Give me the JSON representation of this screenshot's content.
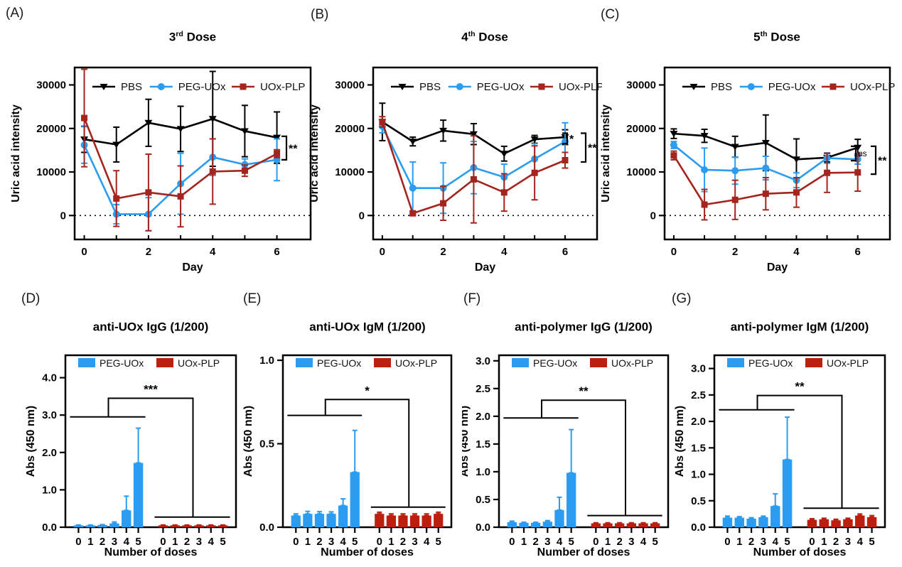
{
  "figure": {
    "panels": [
      {
        "letter": "(A)",
        "title": {
          "base": "3",
          "sup": "rd",
          "rest": " Dose"
        }
      },
      {
        "letter": "(B)",
        "title": {
          "base": "4",
          "sup": "th",
          "rest": " Dose"
        }
      },
      {
        "letter": "(C)",
        "title": {
          "base": "5",
          "sup": "th",
          "rest": " Dose"
        }
      },
      {
        "letter": "(D)",
        "title": {
          "base": "anti-UOx IgG (1/200)",
          "sup": "",
          "rest": ""
        }
      },
      {
        "letter": "(E)",
        "title": {
          "base": "anti-UOx IgM (1/200)",
          "sup": "",
          "rest": ""
        }
      },
      {
        "letter": "(F)",
        "title": {
          "base": "anti-polymer IgG (1/200)",
          "sup": "",
          "rest": ""
        }
      },
      {
        "letter": "(G)",
        "title": {
          "base": "anti-polymer IgM (1/200)",
          "sup": "",
          "rest": ""
        }
      }
    ],
    "colors": {
      "pbs": "#000000",
      "peg_uox": "#2B9CF0",
      "uox_plp_line": "#A4251E",
      "uox_plp_bar": "#BB1F0D"
    }
  },
  "chart_data": [
    {
      "id": "A",
      "type": "line",
      "title": "3rd Dose",
      "xlabel": "Day",
      "ylabel": "Uric acid intensity",
      "x": [
        0,
        1,
        2,
        3,
        4,
        5,
        6
      ],
      "xlim": [
        -0.3,
        7.05
      ],
      "ylim": [
        -5500,
        34000
      ],
      "yticks": [
        0,
        10000,
        20000,
        30000
      ],
      "ytick_labels": [
        "0",
        "10000",
        "20000",
        "30000"
      ],
      "xticks": [
        0,
        1,
        2,
        3,
        4,
        5,
        6
      ],
      "xtick_labels": [
        "0",
        "",
        "2",
        "",
        "4",
        "",
        "6"
      ],
      "zero_line": true,
      "legend_position": "top-inside",
      "grid": false,
      "series": [
        {
          "name": "PBS",
          "color": "#000000",
          "marker": "triangle-down",
          "values": [
            17500,
            16300,
            21300,
            19900,
            22200,
            19400,
            17900
          ],
          "err": [
            3000,
            4000,
            5400,
            5200,
            10900,
            5900,
            5900
          ]
        },
        {
          "name": "PEG-UOx",
          "color": "#2B9CF0",
          "marker": "circle",
          "values": [
            16200,
            300,
            300,
            7300,
            13400,
            11700,
            12800
          ],
          "err": [
            4200,
            2200,
            3800,
            7000,
            4200,
            1300,
            4800
          ]
        },
        {
          "name": "UOx-PLP",
          "color": "#A4251E",
          "marker": "square",
          "values": [
            22400,
            3900,
            5300,
            4400,
            10100,
            10300,
            14200
          ],
          "err": [
            11200,
            6400,
            8800,
            7000,
            7500,
            1300,
            900
          ]
        }
      ],
      "brackets": [
        {
          "y1": 18200,
          "y2": 12800,
          "label": "**",
          "xoff": -34
        }
      ]
    },
    {
      "id": "B",
      "type": "line",
      "title": "4th Dose",
      "xlabel": "Day",
      "ylabel": "Uric acid intensity",
      "x": [
        0,
        1,
        2,
        3,
        4,
        5,
        6
      ],
      "xlim": [
        -0.3,
        7.05
      ],
      "ylim": [
        -5500,
        34000
      ],
      "yticks": [
        0,
        10000,
        20000,
        30000
      ],
      "ytick_labels": [
        "0",
        "10000",
        "20000",
        "30000"
      ],
      "xticks": [
        0,
        1,
        2,
        3,
        4,
        5,
        6
      ],
      "xtick_labels": [
        "0",
        "",
        "2",
        "",
        "4",
        "",
        "6"
      ],
      "zero_line": true,
      "legend_position": "top-inside",
      "grid": false,
      "series": [
        {
          "name": "PBS",
          "color": "#000000",
          "marker": "triangle-down",
          "values": [
            21500,
            17000,
            19500,
            18700,
            14200,
            17500,
            18000
          ],
          "err": [
            4300,
            1000,
            2400,
            2400,
            1700,
            900,
            1700
          ]
        },
        {
          "name": "PEG-UOx",
          "color": "#2B9CF0",
          "marker": "circle",
          "values": [
            20500,
            6300,
            6300,
            11000,
            8800,
            13000,
            17000
          ],
          "err": [
            1500,
            6000,
            5800,
            6000,
            3000,
            3500,
            4300
          ]
        },
        {
          "name": "UOx-PLP",
          "color": "#A4251E",
          "marker": "square",
          "values": [
            21500,
            500,
            2800,
            8300,
            5300,
            9800,
            12700
          ],
          "err": [
            1200,
            500,
            3900,
            10000,
            4300,
            6200,
            1800
          ]
        }
      ],
      "brackets": [
        {
          "y1": 18900,
          "y2": 16500,
          "label": "*",
          "xoff": -42
        },
        {
          "y1": 18900,
          "y2": 12300,
          "label": "**",
          "xoff": -16
        }
      ]
    },
    {
      "id": "C",
      "type": "line",
      "title": "5th Dose",
      "xlabel": "Day",
      "ylabel": "Uric acid intensity",
      "x": [
        0,
        1,
        2,
        3,
        4,
        5,
        6
      ],
      "xlim": [
        -0.3,
        7.05
      ],
      "ylim": [
        -5500,
        34000
      ],
      "yticks": [
        0,
        10000,
        20000,
        30000
      ],
      "ytick_labels": [
        "0",
        "10000",
        "20000",
        "30000"
      ],
      "xticks": [
        0,
        1,
        2,
        3,
        4,
        5,
        6
      ],
      "xtick_labels": [
        "0",
        "",
        "2",
        "",
        "4",
        "",
        "6"
      ],
      "zero_line": true,
      "legend_position": "top-inside",
      "grid": false,
      "series": [
        {
          "name": "PBS",
          "color": "#000000",
          "marker": "triangle-down",
          "values": [
            18800,
            18300,
            15800,
            16700,
            12900,
            13300,
            15600
          ],
          "err": [
            1100,
            1500,
            2400,
            6400,
            4700,
            1000,
            1900
          ]
        },
        {
          "name": "PEG-UOx",
          "color": "#2B9CF0",
          "marker": "circle",
          "values": [
            16200,
            10500,
            10300,
            10900,
            8100,
            13200,
            12900
          ],
          "err": [
            800,
            5000,
            3100,
            2700,
            1700,
            1200,
            1100
          ]
        },
        {
          "name": "UOx-PLP",
          "color": "#A4251E",
          "marker": "square",
          "values": [
            13800,
            2500,
            3600,
            5000,
            5300,
            9800,
            9900
          ],
          "err": [
            1000,
            3500,
            4500,
            3700,
            3400,
            4500,
            4300
          ]
        }
      ],
      "brackets": [
        {
          "y1": 15900,
          "y2": 12600,
          "label": "ns",
          "xoff": -48
        },
        {
          "y1": 15900,
          "y2": 9500,
          "label": "**",
          "xoff": -20
        }
      ]
    },
    {
      "id": "D",
      "type": "bar",
      "title": "anti-UOx IgG (1/200)",
      "xlabel": "Number of doses",
      "ylabel": "Abs (450 nm)",
      "categories": [
        "0",
        "1",
        "2",
        "3",
        "4",
        "5"
      ],
      "ylim": [
        0,
        4.6
      ],
      "yticks": [
        0,
        1,
        2,
        3,
        4
      ],
      "ytick_labels": [
        "0.0",
        "1.0",
        "2.0",
        "3.0",
        "4.0"
      ],
      "legend_position": "top-inside",
      "grid": false,
      "series": [
        {
          "name": "PEG-UOx",
          "color": "#2B9CF0",
          "values": [
            0.05,
            0.05,
            0.06,
            0.1,
            0.45,
            1.72
          ],
          "err": [
            0.01,
            0.01,
            0.01,
            0.04,
            0.38,
            0.93
          ]
        },
        {
          "name": "UOx-PLP",
          "color": "#BB1F0D",
          "values": [
            0.05,
            0.05,
            0.05,
            0.05,
            0.05,
            0.05
          ],
          "err": [
            0.01,
            0.01,
            0.01,
            0.01,
            0.01,
            0.01
          ]
        }
      ],
      "sig": {
        "label": "***",
        "group1_y": 2.95,
        "apex_y": 3.45,
        "group2_y": 0.27
      }
    },
    {
      "id": "E",
      "type": "bar",
      "title": "anti-UOx IgM (1/200)",
      "xlabel": "Number of doses",
      "ylabel": "Abs (450 nm)",
      "categories": [
        "0",
        "1",
        "2",
        "3",
        "4",
        "5"
      ],
      "ylim": [
        0,
        1.03
      ],
      "yticks": [
        0,
        0.5,
        1
      ],
      "ytick_labels": [
        "0.0",
        "0.5",
        "1.0"
      ],
      "legend_position": "top-inside",
      "grid": false,
      "series": [
        {
          "name": "PEG-UOx",
          "color": "#2B9CF0",
          "values": [
            0.07,
            0.08,
            0.08,
            0.08,
            0.13,
            0.33
          ],
          "err": [
            0.01,
            0.015,
            0.013,
            0.012,
            0.04,
            0.25
          ]
        },
        {
          "name": "UOx-PLP",
          "color": "#BB1F0D",
          "values": [
            0.08,
            0.07,
            0.07,
            0.07,
            0.07,
            0.08
          ],
          "err": [
            0.01,
            0.01,
            0.01,
            0.01,
            0.01,
            0.01
          ]
        }
      ],
      "sig": {
        "label": "*",
        "group1_y": 0.67,
        "apex_y": 0.765,
        "group2_y": 0.12
      }
    },
    {
      "id": "F",
      "type": "bar",
      "title": "anti-polymer IgG (1/200)",
      "xlabel": "Number of doses",
      "ylabel": "Abs (450 nm)",
      "categories": [
        "0",
        "1",
        "2",
        "3",
        "4",
        "5"
      ],
      "ylim": [
        0,
        3.1
      ],
      "yticks": [
        0,
        0.5,
        1,
        1.5,
        2,
        2.5,
        3
      ],
      "ytick_labels": [
        "0.0",
        "0.5",
        "1.0",
        "1.5",
        "2.0",
        "2.5",
        "3.0"
      ],
      "legend_position": "top-inside",
      "grid": false,
      "series": [
        {
          "name": "PEG-UOx",
          "color": "#2B9CF0",
          "values": [
            0.09,
            0.08,
            0.08,
            0.1,
            0.31,
            0.98
          ],
          "err": [
            0.02,
            0.01,
            0.01,
            0.02,
            0.23,
            0.78
          ]
        },
        {
          "name": "UOx-PLP",
          "color": "#BB1F0D",
          "values": [
            0.07,
            0.07,
            0.07,
            0.07,
            0.07,
            0.07
          ],
          "err": [
            0.01,
            0.01,
            0.01,
            0.01,
            0.01,
            0.01
          ]
        }
      ],
      "sig": {
        "label": "**",
        "group1_y": 1.97,
        "apex_y": 2.29,
        "group2_y": 0.21
      }
    },
    {
      "id": "G",
      "type": "bar",
      "title": "anti-polymer IgM (1/200)",
      "xlabel": "Number of doses",
      "ylabel": "Abs (450 nm)",
      "categories": [
        "0",
        "1",
        "2",
        "3",
        "4",
        "5"
      ],
      "ylim": [
        0,
        3.25
      ],
      "yticks": [
        0,
        0.5,
        1,
        1.5,
        2,
        2.5,
        3
      ],
      "ytick_labels": [
        "0.0",
        "0.5",
        "1.0",
        "1.5",
        "2.0",
        "2.5",
        "3.0"
      ],
      "legend_position": "top-inside",
      "grid": false,
      "series": [
        {
          "name": "PEG-UOx",
          "color": "#2B9CF0",
          "values": [
            0.18,
            0.18,
            0.16,
            0.19,
            0.4,
            1.28
          ],
          "err": [
            0.03,
            0.02,
            0.02,
            0.02,
            0.23,
            0.8
          ]
        },
        {
          "name": "UOx-PLP",
          "color": "#BB1F0D",
          "values": [
            0.14,
            0.15,
            0.13,
            0.15,
            0.22,
            0.19
          ],
          "err": [
            0.02,
            0.02,
            0.02,
            0.02,
            0.03,
            0.03
          ]
        }
      ],
      "sig": {
        "label": "**",
        "group1_y": 2.22,
        "apex_y": 2.49,
        "group2_y": 0.36
      }
    }
  ]
}
